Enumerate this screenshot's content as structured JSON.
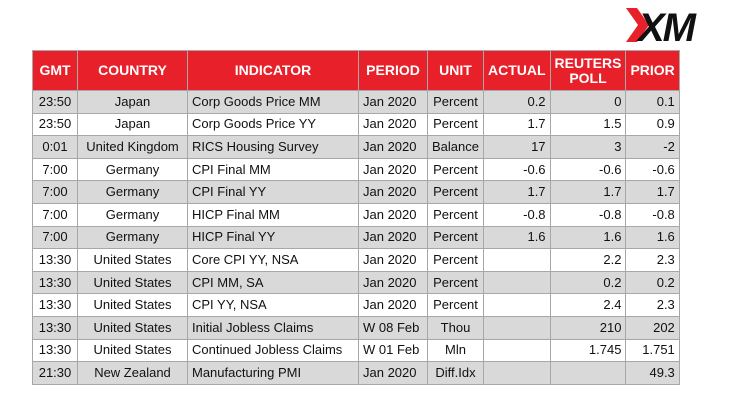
{
  "brand": {
    "logo_text": "XM",
    "accent": "#e8202a",
    "logo_color": "#111111"
  },
  "header": [
    "GMT",
    "COUNTRY",
    "INDICATOR",
    "PERIOD",
    "UNIT",
    "ACTUAL",
    "REUTERS POLL",
    "PRIOR"
  ],
  "rows": [
    {
      "gmt": "23:50",
      "country": "Japan",
      "indicator": "Corp Goods Price MM",
      "period": "Jan 2020",
      "unit": "Percent",
      "actual": "0.2",
      "poll": "0",
      "prior": "0.1",
      "shaded": true
    },
    {
      "gmt": "23:50",
      "country": "Japan",
      "indicator": "Corp Goods Price YY",
      "period": "Jan 2020",
      "unit": "Percent",
      "actual": "1.7",
      "poll": "1.5",
      "prior": "0.9",
      "shaded": false
    },
    {
      "gmt": "0:01",
      "country": "United Kingdom",
      "indicator": "RICS Housing Survey",
      "period": "Jan 2020",
      "unit": "Balance",
      "actual": "17",
      "poll": "3",
      "prior": "-2",
      "shaded": true
    },
    {
      "gmt": "7:00",
      "country": "Germany",
      "indicator": "CPI Final MM",
      "period": "Jan 2020",
      "unit": "Percent",
      "actual": "-0.6",
      "poll": "-0.6",
      "prior": "-0.6",
      "shaded": false
    },
    {
      "gmt": "7:00",
      "country": "Germany",
      "indicator": "CPI Final YY",
      "period": "Jan 2020",
      "unit": "Percent",
      "actual": "1.7",
      "poll": "1.7",
      "prior": "1.7",
      "shaded": true
    },
    {
      "gmt": "7:00",
      "country": "Germany",
      "indicator": "HICP Final MM",
      "period": "Jan 2020",
      "unit": "Percent",
      "actual": "-0.8",
      "poll": "-0.8",
      "prior": "-0.8",
      "shaded": false
    },
    {
      "gmt": "7:00",
      "country": "Germany",
      "indicator": "HICP Final YY",
      "period": "Jan 2020",
      "unit": "Percent",
      "actual": "1.6",
      "poll": "1.6",
      "prior": "1.6",
      "shaded": true
    },
    {
      "gmt": "13:30",
      "country": "United States",
      "indicator": "Core CPI YY, NSA",
      "period": "Jan 2020",
      "unit": "Percent",
      "actual": "",
      "poll": "2.2",
      "prior": "2.3",
      "shaded": false
    },
    {
      "gmt": "13:30",
      "country": "United States",
      "indicator": "CPI MM, SA",
      "period": "Jan 2020",
      "unit": "Percent",
      "actual": "",
      "poll": "0.2",
      "prior": "0.2",
      "shaded": true
    },
    {
      "gmt": "13:30",
      "country": "United States",
      "indicator": "CPI YY, NSA",
      "period": "Jan 2020",
      "unit": "Percent",
      "actual": "",
      "poll": "2.4",
      "prior": "2.3",
      "shaded": false
    },
    {
      "gmt": "13:30",
      "country": "United States",
      "indicator": "Initial Jobless Claims",
      "period": "W 08 Feb",
      "unit": "Thou",
      "actual": "",
      "poll": "210",
      "prior": "202",
      "shaded": true
    },
    {
      "gmt": "13:30",
      "country": "United States",
      "indicator": "Continued Jobless Claims",
      "period": "W 01 Feb",
      "unit": "Mln",
      "actual": "",
      "poll": "1.745",
      "prior": "1.751",
      "shaded": false
    },
    {
      "gmt": "21:30",
      "country": "New Zealand",
      "indicator": "Manufacturing PMI",
      "period": "Jan 2020",
      "unit": "Diff.Idx",
      "actual": "",
      "poll": "",
      "prior": "49.3",
      "shaded": true
    }
  ]
}
